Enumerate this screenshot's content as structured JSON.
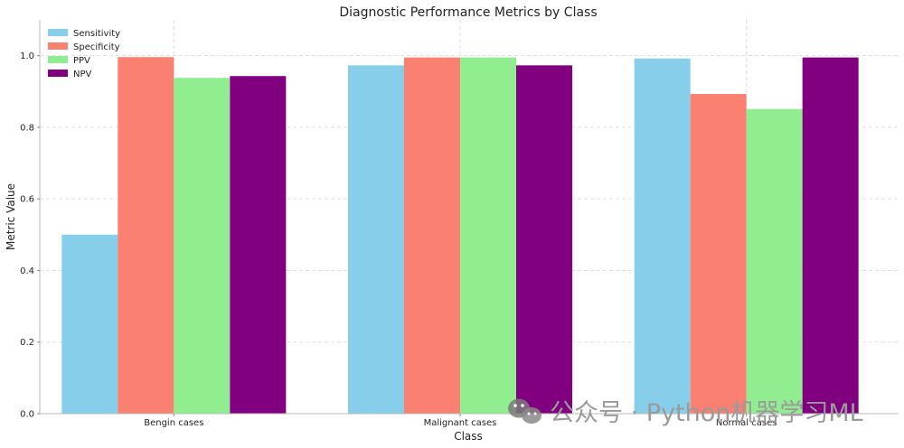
{
  "chart_data": {
    "type": "bar",
    "title": "Diagnostic Performance Metrics by Class",
    "xlabel": "Class",
    "ylabel": "Metric Value",
    "categories": [
      "Bengin cases",
      "Malignant cases",
      "Normal cases"
    ],
    "series": [
      {
        "name": "Sensitivity",
        "color": "#87ceeb",
        "values": [
          0.5,
          0.973,
          0.992
        ]
      },
      {
        "name": "Specificity",
        "color": "#fa8072",
        "values": [
          0.996,
          0.995,
          0.893
        ]
      },
      {
        "name": "PPV",
        "color": "#90ee90",
        "values": [
          0.938,
          0.995,
          0.851
        ]
      },
      {
        "name": "NPV",
        "color": "#800080",
        "values": [
          0.943,
          0.973,
          0.995
        ]
      }
    ],
    "ylim": [
      0,
      1.1
    ],
    "yticks": [
      0.0,
      0.2,
      0.4,
      0.6,
      0.8,
      1.0
    ],
    "ytick_labels": [
      "0.0",
      "0.2",
      "0.4",
      "0.6",
      "0.8",
      "1.0"
    ],
    "grid": true,
    "legend_position": "top-left"
  },
  "watermark": {
    "text": "公众号 · Python机器学习ML",
    "icon": "wechat-icon"
  }
}
